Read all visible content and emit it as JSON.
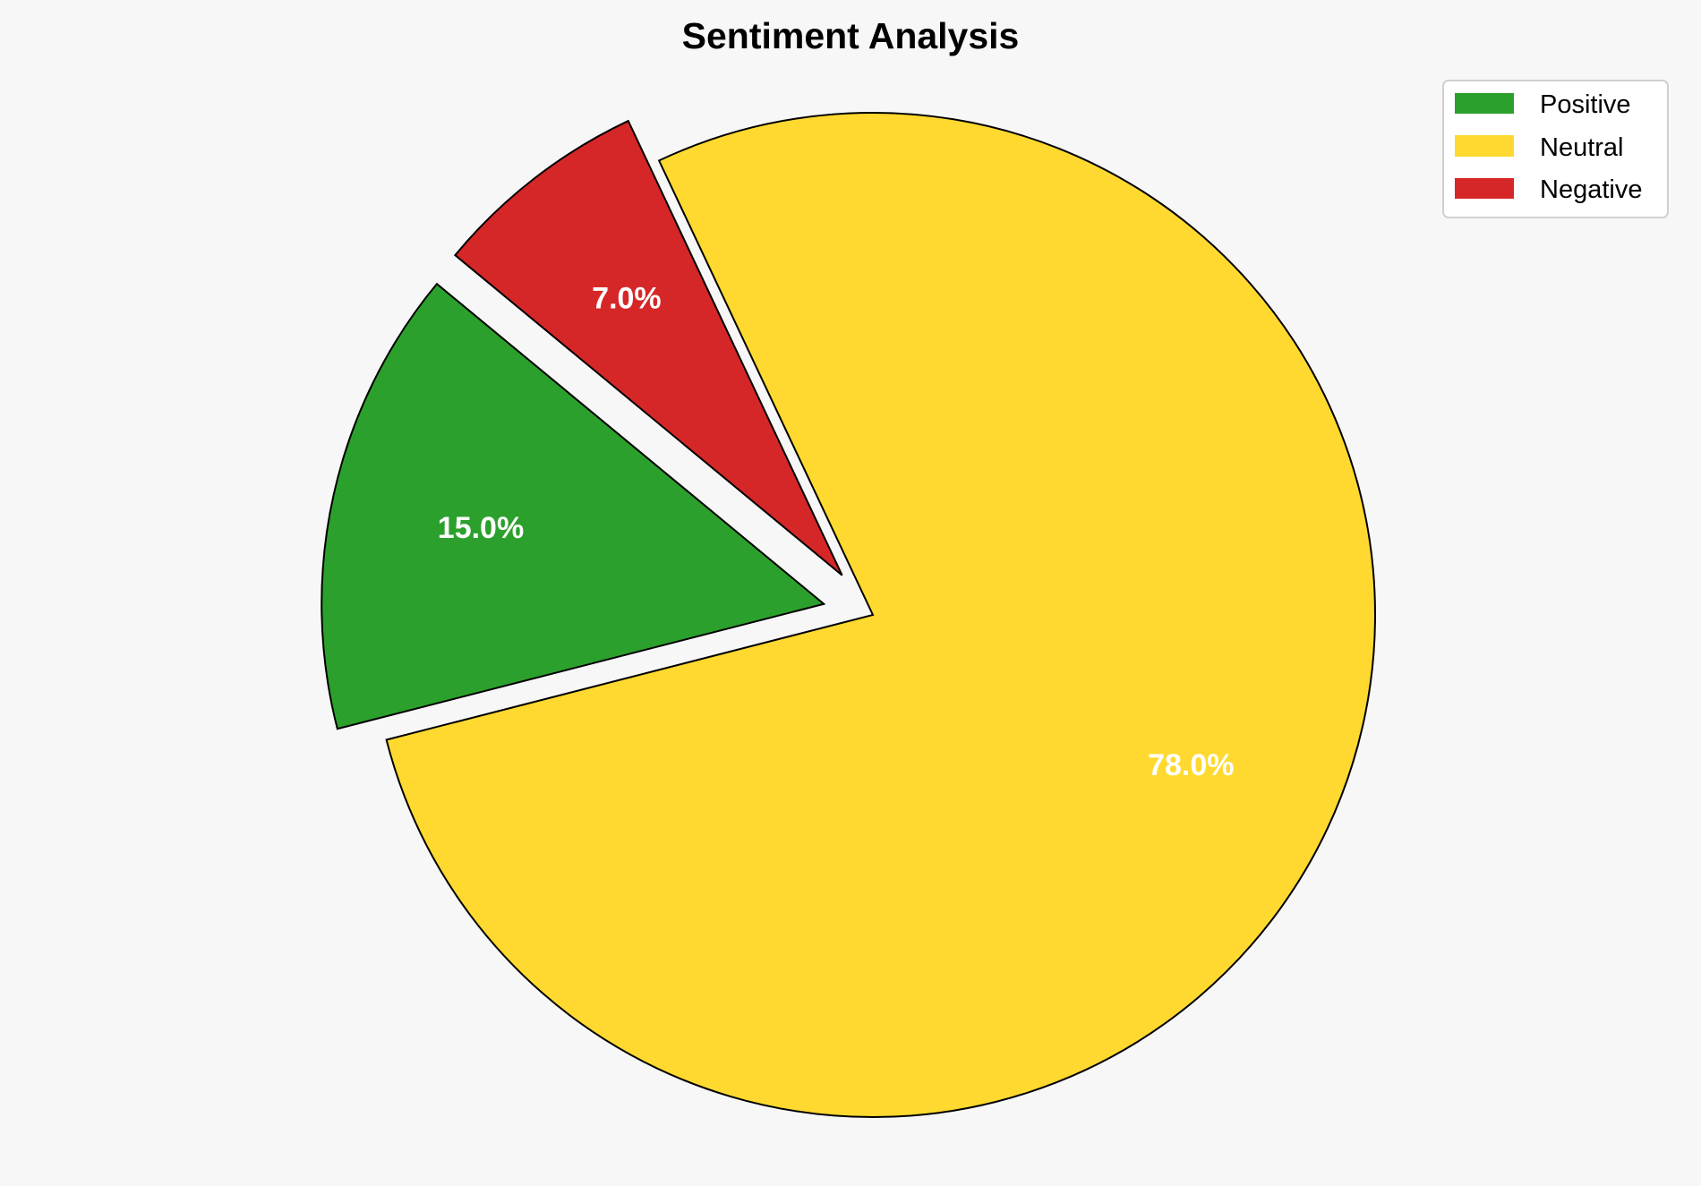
{
  "chart_data": {
    "type": "pie",
    "title": "Sentiment Analysis",
    "categories": [
      "Positive",
      "Neutral",
      "Negative"
    ],
    "values": [
      15.0,
      78.0,
      7.0
    ],
    "value_labels": [
      "15.0%",
      "78.0%",
      "7.0%"
    ],
    "colors": [
      "#2ca02c",
      "#ffd92f",
      "#d62728"
    ],
    "exploded": [
      true,
      false,
      true
    ],
    "legend": {
      "placement": "top-right",
      "entries": [
        "Positive",
        "Neutral",
        "Negative"
      ]
    }
  }
}
